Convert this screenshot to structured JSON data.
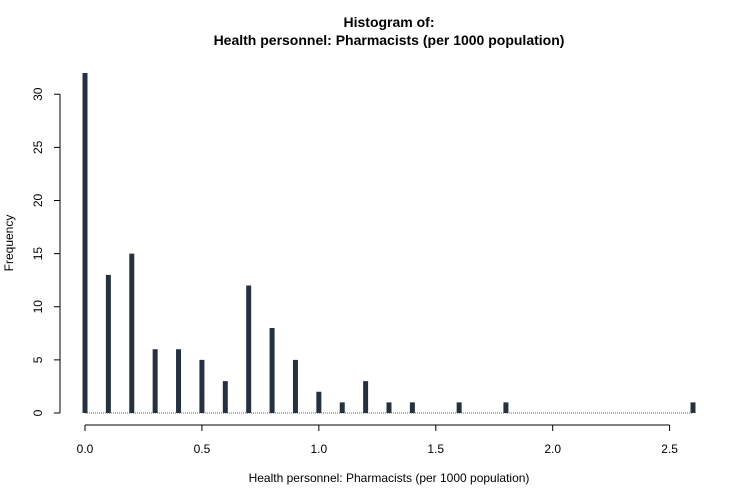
{
  "chart_data": {
    "type": "bar",
    "title": "Histogram of:",
    "subtitle": "Health personnel: Pharmacists (per 1000 population)",
    "xlabel": "Health personnel: Pharmacists (per 1000 population)",
    "ylabel": "Frequency",
    "xlim": [
      0,
      2.6
    ],
    "ylim": [
      0,
      32
    ],
    "x_ticks": [
      {
        "value": 0,
        "label": "0.0"
      },
      {
        "value": 0.5,
        "label": "0.5"
      },
      {
        "value": 1.0,
        "label": "1.0"
      },
      {
        "value": 1.5,
        "label": "1.5"
      },
      {
        "value": 2.0,
        "label": "2.0"
      },
      {
        "value": 2.5,
        "label": "2.5"
      }
    ],
    "y_ticks": [
      {
        "value": 0,
        "label": "0"
      },
      {
        "value": 5,
        "label": "5"
      },
      {
        "value": 10,
        "label": "10"
      },
      {
        "value": 15,
        "label": "15"
      },
      {
        "value": 20,
        "label": "20"
      },
      {
        "value": 25,
        "label": "25"
      },
      {
        "value": 30,
        "label": "30"
      }
    ],
    "grid": false,
    "bar_color": "#263140",
    "baseline_color": "#8b5a5a",
    "x": [
      0.0,
      0.1,
      0.2,
      0.3,
      0.4,
      0.5,
      0.6,
      0.7,
      0.8,
      0.9,
      1.0,
      1.1,
      1.2,
      1.3,
      1.4,
      1.6,
      1.8,
      2.6
    ],
    "values": [
      32,
      13,
      15,
      6,
      6,
      5,
      3,
      12,
      8,
      5,
      2,
      1,
      3,
      1,
      1,
      1,
      1,
      1
    ]
  }
}
